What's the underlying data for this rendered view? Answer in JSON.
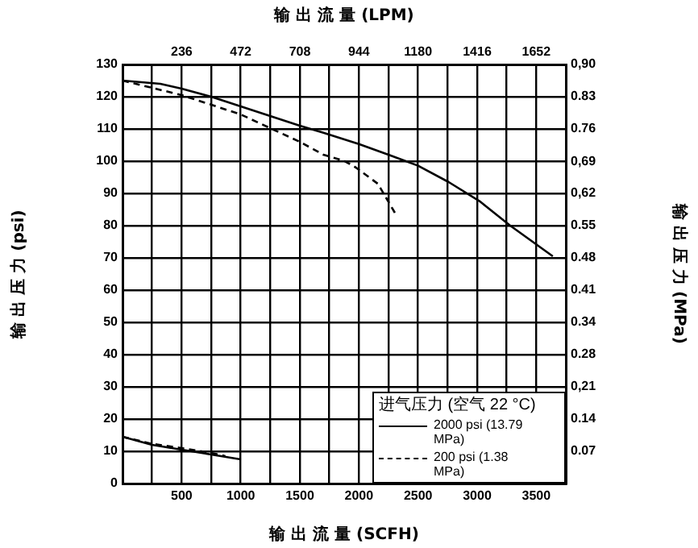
{
  "chart_data": {
    "type": "line",
    "xlabel": "输 出 流 量 (SCFH)",
    "x2label": "输 出 流 量 (LPM)",
    "ylabel": "输 出 压 力 (psi)",
    "y2label": "输 出 压 力 (MPa)",
    "legend_title": "进气压力 (空气 22 °C)",
    "xlim": [
      0,
      3750
    ],
    "xticks": [
      {
        "value": 0,
        "label": null
      },
      {
        "value": 250,
        "label": null
      },
      500,
      {
        "value": 750,
        "label": null
      },
      1000,
      {
        "value": 1250,
        "label": null
      },
      1500,
      {
        "value": 1750,
        "label": null
      },
      2000,
      {
        "value": 2250,
        "label": null
      },
      2500,
      {
        "value": 2750,
        "label": null
      },
      3000,
      {
        "value": 3250,
        "label": null
      },
      3500,
      {
        "value": 3750,
        "label": null
      }
    ],
    "x2lim": [
      0,
      1770
    ],
    "x2ticks": [
      236,
      472,
      708,
      944,
      1180,
      1416,
      1652
    ],
    "ylim": [
      0,
      130
    ],
    "yticks": [
      0,
      10,
      20,
      30,
      40,
      50,
      60,
      70,
      80,
      90,
      100,
      110,
      120,
      130
    ],
    "y2lim": [
      0,
      0.896
    ],
    "y2ticks": [
      {
        "value": 0.069,
        "label": "0.07"
      },
      {
        "value": 0.138,
        "label": "0.14"
      },
      {
        "value": 0.207,
        "label": "0,21"
      },
      {
        "value": 0.276,
        "label": "0.28"
      },
      {
        "value": 0.345,
        "label": "0.34"
      },
      {
        "value": 0.414,
        "label": "0.41"
      },
      {
        "value": 0.483,
        "label": "0.48"
      },
      {
        "value": 0.552,
        "label": "0.55"
      },
      {
        "value": 0.621,
        "label": "0,62"
      },
      {
        "value": 0.689,
        "label": "0,69"
      },
      {
        "value": 0.758,
        "label": "0.76"
      },
      {
        "value": 0.827,
        "label": "0.83"
      },
      {
        "value": 0.896,
        "label": "0,90"
      }
    ],
    "grid": true,
    "legend": "bottom right",
    "marker": "none",
    "series": [
      {
        "name": "2000 psi (13.79 MPa)",
        "color": "#000000",
        "line_style": "solid",
        "x": [
          0,
          320,
          500,
          750,
          1000,
          1500,
          1700,
          2000,
          2250,
          2500,
          2760,
          3020,
          3280,
          3640
        ],
        "values": [
          125,
          124,
          122.5,
          120,
          117,
          111,
          108.8,
          105.3,
          102,
          98.6,
          93.5,
          87.6,
          80,
          70.5
        ]
      },
      {
        "name": "200 psi (1.38 MPa)",
        "color": "#000000",
        "line_style": "dashed",
        "x": [
          0,
          500,
          1000,
          1500,
          1700,
          1880,
          1975,
          2160,
          2320
        ],
        "values": [
          125,
          120.5,
          114.5,
          106,
          102,
          100,
          98,
          93,
          83
        ]
      },
      {
        "color": "#000000",
        "line_style": "solid",
        "x": [
          0,
          250,
          500,
          750,
          1000
        ],
        "values": [
          14.5,
          12,
          10.5,
          9,
          7.5
        ]
      },
      {
        "color": "#000000",
        "line_style": "dashed",
        "x": [
          0,
          250,
          500,
          750,
          870
        ],
        "values": [
          14.5,
          12.3,
          11,
          9.5,
          8.5
        ]
      }
    ]
  }
}
